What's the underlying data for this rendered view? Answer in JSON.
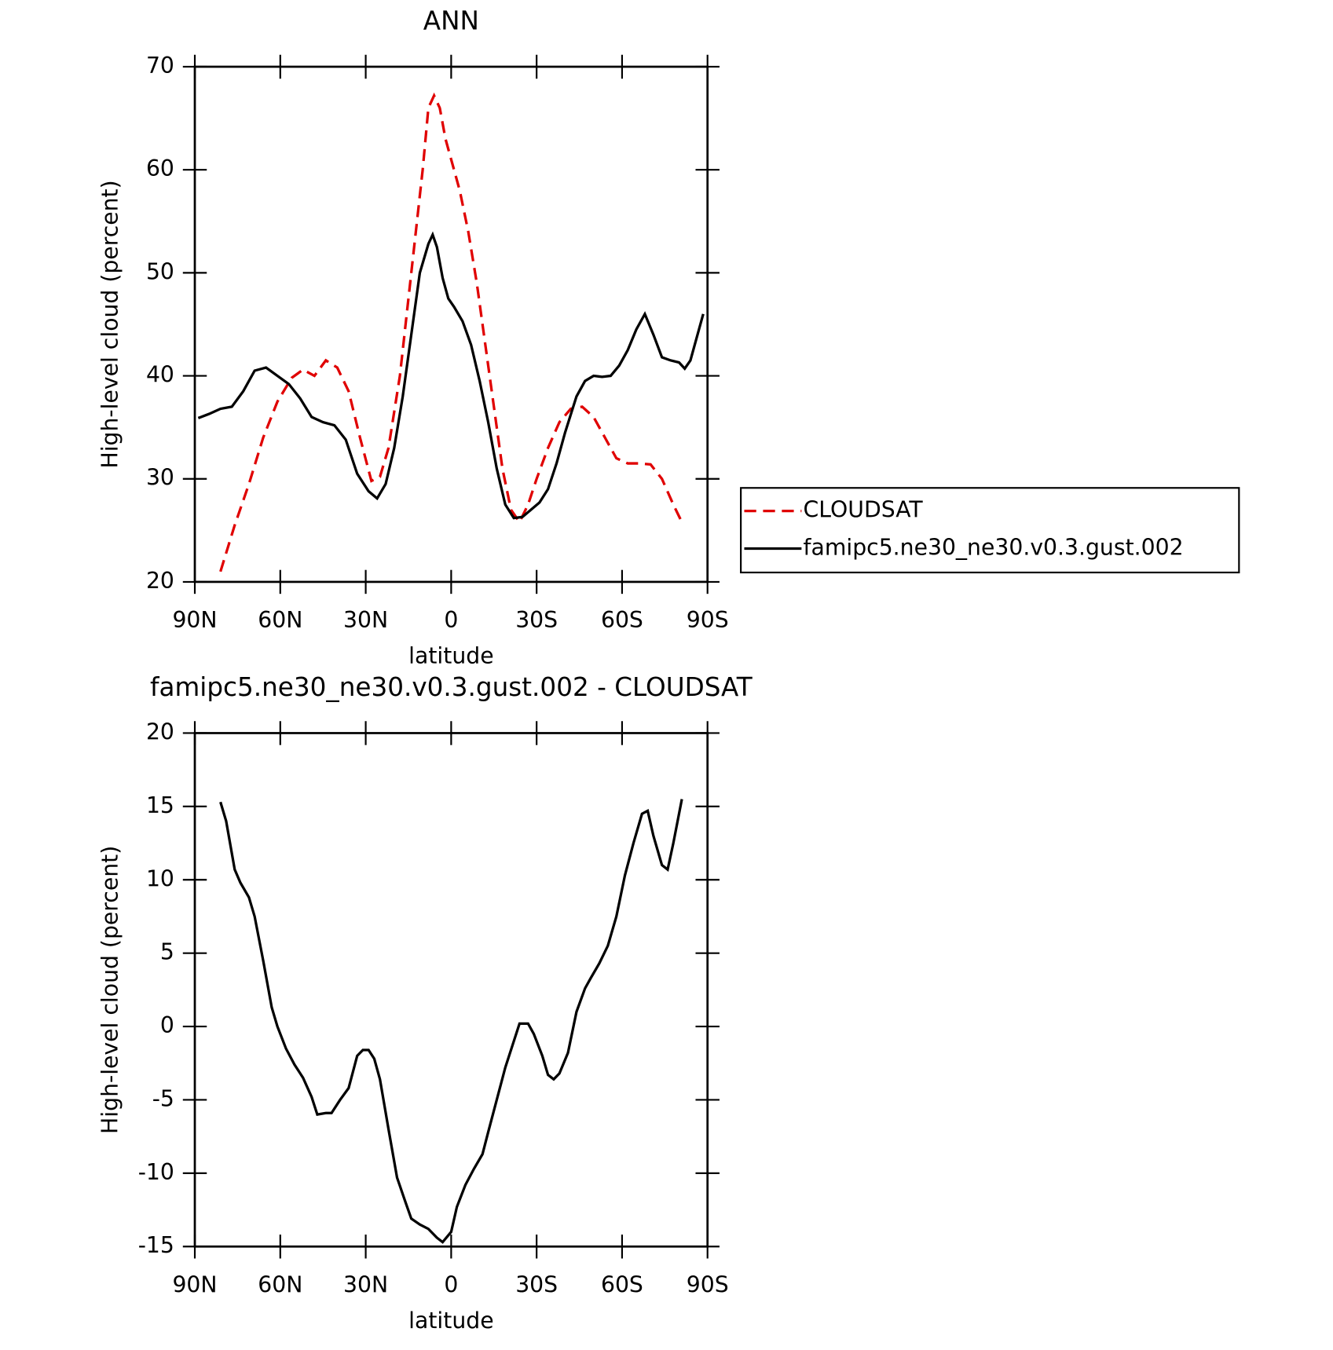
{
  "chart_data": [
    {
      "type": "line",
      "title": "ANN",
      "x_label": "latitude",
      "y_label": "High-level cloud (percent)",
      "xlim": [
        90,
        -90
      ],
      "xticks": [
        {
          "value": 90,
          "label": "90N"
        },
        {
          "value": 60,
          "label": "60N"
        },
        {
          "value": 30,
          "label": "30N"
        },
        0,
        {
          "value": -30,
          "label": "30S"
        },
        {
          "value": -60,
          "label": "60S"
        },
        {
          "value": -90,
          "label": "90S"
        }
      ],
      "ylim": [
        20,
        70
      ],
      "yticks": [
        20,
        30,
        40,
        50,
        60,
        70
      ],
      "legend": "right",
      "series": [
        {
          "name": "CLOUDSAT",
          "color": "#e00000",
          "linestyle": "dashed",
          "x": [
            81,
            76,
            71,
            66,
            61,
            56,
            52,
            48,
            44,
            40,
            36,
            32,
            28,
            25,
            22,
            18,
            14,
            10,
            8,
            6,
            4,
            2,
            0,
            -3,
            -6,
            -9,
            -12,
            -15,
            -18,
            -21,
            -24,
            -27,
            -30,
            -34,
            -38,
            -42,
            -46,
            -50,
            -54,
            -58,
            -62,
            -66,
            -70,
            -74,
            -78,
            -81
          ],
          "values": [
            21,
            25.5,
            29.5,
            34,
            37.5,
            39.8,
            40.6,
            40,
            41.5,
            40.8,
            38.5,
            34,
            29.8,
            30.2,
            33,
            40,
            50,
            60,
            66,
            67.2,
            66,
            63,
            61,
            58,
            54,
            49,
            43,
            37,
            31,
            27,
            25.8,
            27.5,
            30,
            33,
            35.5,
            36.8,
            37,
            36,
            34,
            32,
            31.5,
            31.5,
            31.4,
            30,
            27.5,
            25.8
          ]
        },
        {
          "name": "famipc5.ne30_ne30.v0.3.gust.002",
          "color": "#000000",
          "linestyle": "solid",
          "x": [
            88.8,
            85,
            81,
            77,
            73,
            69,
            65,
            61,
            57,
            53,
            49,
            45,
            41,
            37,
            33,
            29,
            26,
            23,
            20,
            17,
            14,
            11,
            8,
            6.5,
            5,
            3,
            1,
            -1,
            -4,
            -7,
            -10,
            -13,
            -16,
            -19,
            -22,
            -25,
            -28,
            -31,
            -34,
            -37,
            -40,
            -44,
            -47,
            -50,
            -53,
            -56,
            -59,
            -62,
            -65,
            -68,
            -71,
            -74,
            -77,
            -80,
            -82,
            -84,
            -88.5
          ],
          "values": [
            35.9,
            36.3,
            36.8,
            37,
            38.5,
            40.5,
            40.8,
            40,
            39.2,
            37.8,
            36,
            35.5,
            35.2,
            33.8,
            30.5,
            28.8,
            28.1,
            29.5,
            33,
            38,
            44,
            50,
            52.8,
            53.7,
            52.5,
            49.5,
            47.5,
            46.7,
            45.3,
            43,
            39.5,
            35.5,
            31,
            27.5,
            26.2,
            26.3,
            27,
            27.7,
            29,
            31.5,
            34.5,
            38,
            39.5,
            40,
            39.9,
            40,
            41,
            42.5,
            44.5,
            46,
            44,
            41.8,
            41.5,
            41.3,
            40.7,
            41.5,
            46
          ]
        }
      ]
    },
    {
      "type": "line",
      "title": "famipc5.ne30_ne30.v0.3.gust.002 - CLOUDSAT",
      "x_label": "latitude",
      "y_label": "High-level cloud (percent)",
      "xlim": [
        90,
        -90
      ],
      "xticks": [
        {
          "value": 90,
          "label": "90N"
        },
        {
          "value": 60,
          "label": "60N"
        },
        {
          "value": 30,
          "label": "30N"
        },
        0,
        {
          "value": -30,
          "label": "30S"
        },
        {
          "value": -60,
          "label": "60S"
        },
        {
          "value": -90,
          "label": "90S"
        }
      ],
      "ylim": [
        -15,
        20
      ],
      "yticks": [
        -15,
        -10,
        -5,
        0,
        5,
        10,
        15,
        20
      ],
      "color": "#000000",
      "x": [
        81,
        79,
        76,
        74,
        71,
        69,
        66,
        63,
        61,
        58,
        55,
        52,
        49,
        47,
        44,
        42,
        39,
        36,
        33,
        31,
        29,
        27,
        25,
        22,
        19,
        16,
        14,
        11,
        8,
        5,
        3,
        0,
        -2,
        -5,
        -8,
        -11,
        -13,
        -16,
        -19,
        -22,
        -24,
        -27,
        -29,
        -32,
        -34,
        -36,
        -38,
        -41,
        -44,
        -47,
        -49,
        -52,
        -55,
        -58,
        -61,
        -64,
        -67,
        -69,
        -71,
        -74,
        -76,
        -78,
        -81
      ],
      "values": [
        15.3,
        14,
        10.7,
        9.8,
        8.8,
        7.5,
        4.5,
        1.3,
        0,
        -1.5,
        -2.6,
        -3.5,
        -4.8,
        -6,
        -5.9,
        -5.9,
        -5,
        -4.2,
        -2,
        -1.6,
        -1.6,
        -2.2,
        -3.6,
        -7,
        -10.3,
        -12,
        -13.1,
        -13.5,
        -13.8,
        -14.4,
        -14.7,
        -14,
        -12.3,
        -10.8,
        -9.7,
        -8.7,
        -7.2,
        -5,
        -2.8,
        -1,
        0.2,
        0.2,
        -0.5,
        -2,
        -3.3,
        -3.6,
        -3.2,
        -1.8,
        1,
        2.6,
        3.3,
        4.3,
        5.5,
        7.5,
        10.3,
        12.5,
        14.5,
        14.7,
        13,
        11,
        10.7,
        12.5,
        15.5
      ]
    }
  ]
}
